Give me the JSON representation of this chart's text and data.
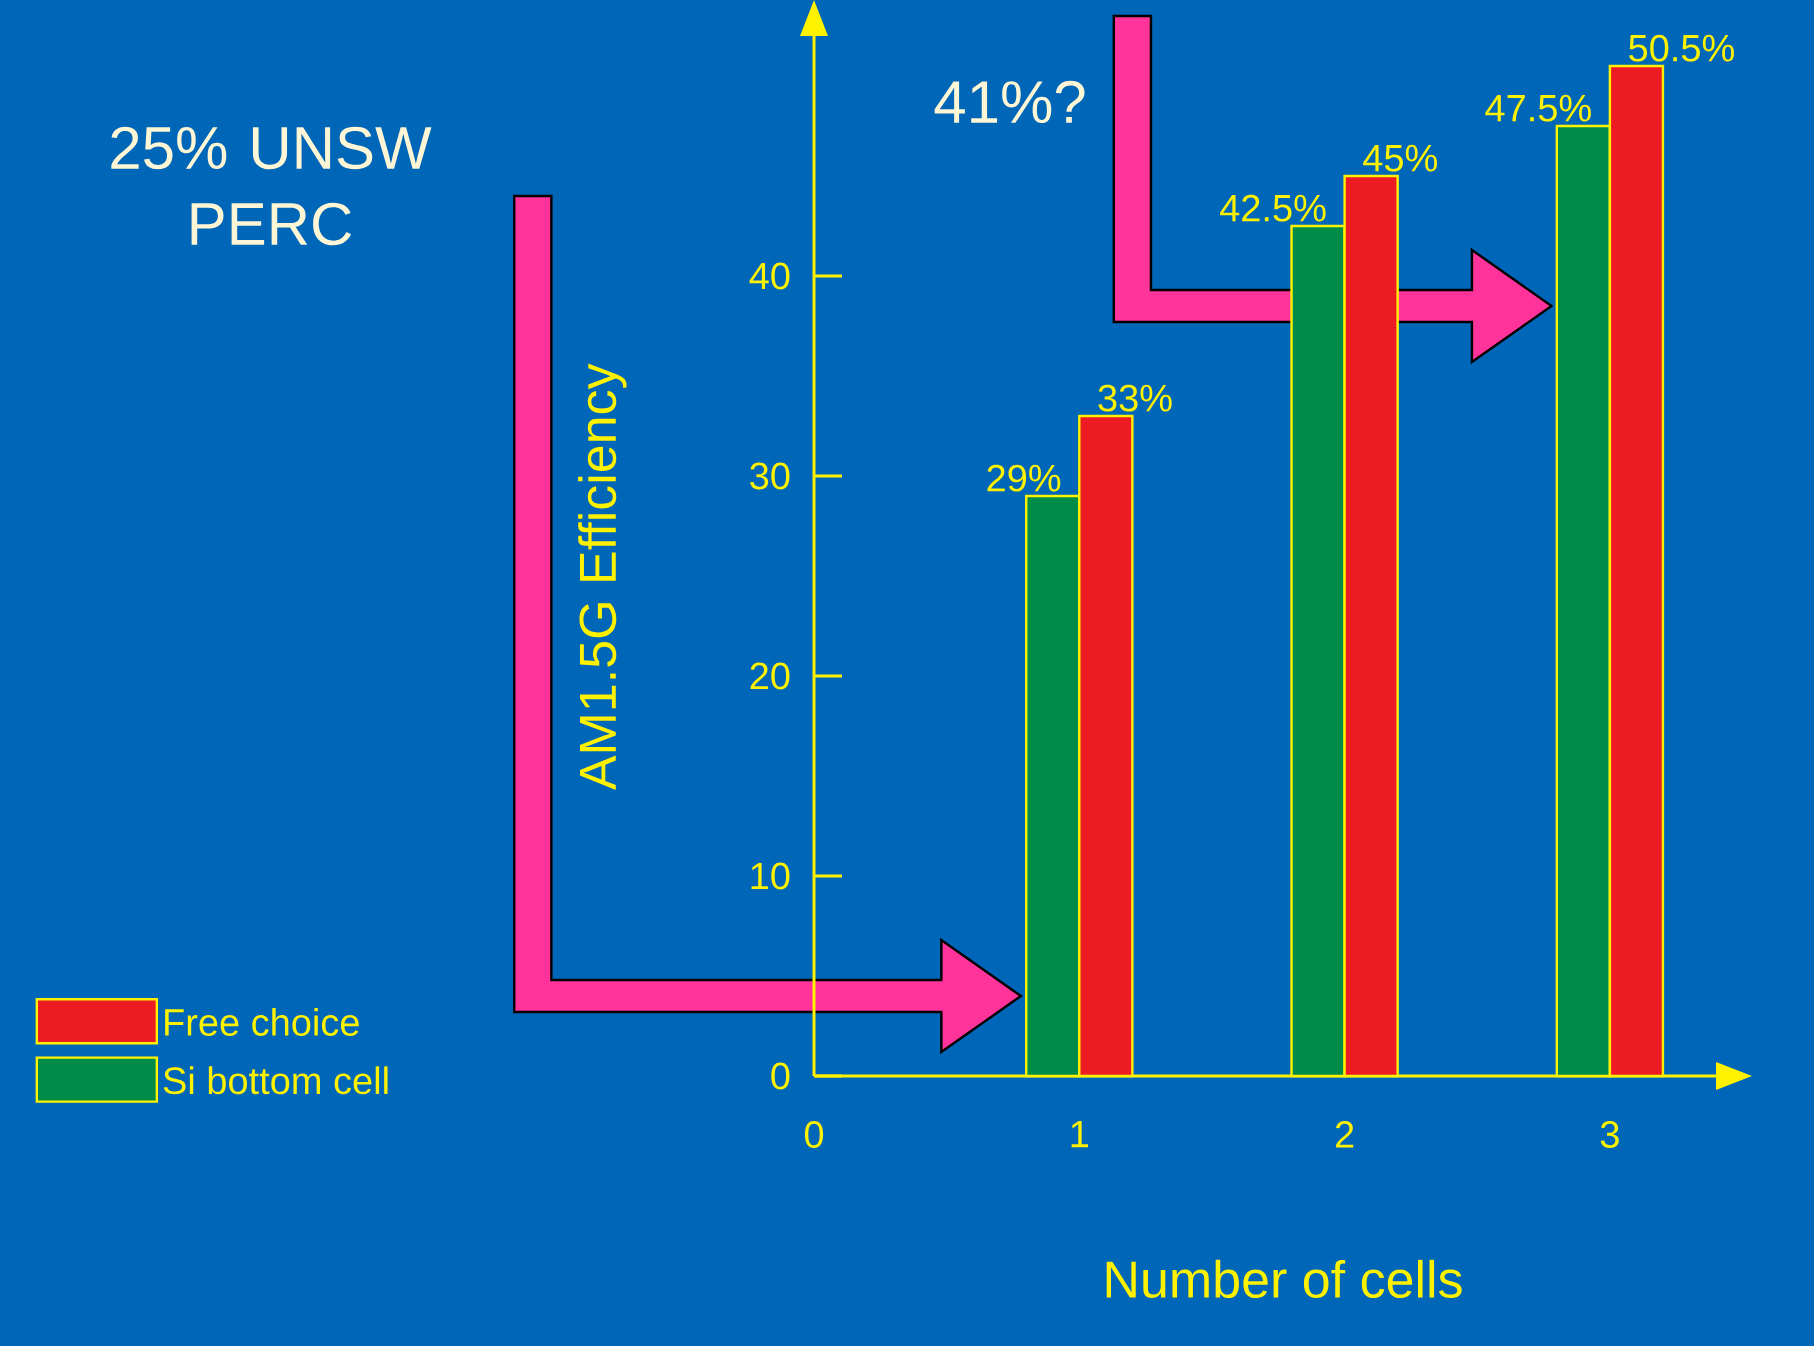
{
  "chart_data": {
    "type": "bar",
    "xlabel": "Number of cells",
    "ylabel": "AM1.5G Efficiency",
    "annotations": [
      "25% UNSW PERC",
      "41%?"
    ],
    "x": [
      1,
      2,
      3
    ],
    "xlim": [
      0,
      3.4
    ],
    "xticks": [
      0,
      1,
      2,
      3
    ],
    "ylim": [
      0,
      52
    ],
    "yticks": [
      0,
      10,
      20,
      30,
      40
    ],
    "grid": false,
    "legend": "bottom left",
    "series": [
      {
        "name": "Si bottom cell",
        "color": "#008c48",
        "values": [
          29,
          42.5,
          47.5
        ],
        "value_labels": [
          "29%",
          "42.5%",
          "47.5%"
        ]
      },
      {
        "name": "Free choice",
        "color": "#ed1c24",
        "values": [
          33,
          45,
          50.5
        ],
        "value_labels": [
          "33%",
          "45%",
          "50.5%"
        ]
      }
    ]
  }
}
